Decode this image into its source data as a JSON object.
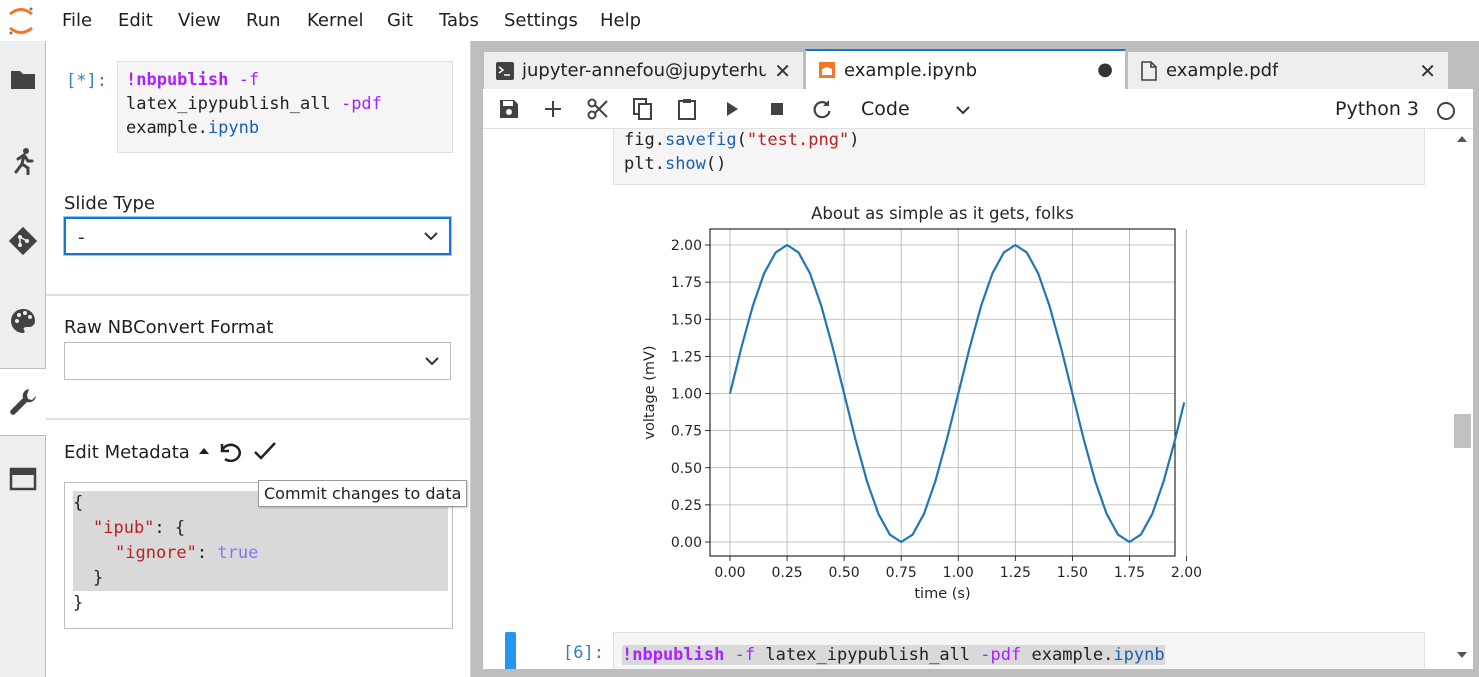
{
  "menubar": {
    "items": [
      "File",
      "Edit",
      "View",
      "Run",
      "Kernel",
      "Git",
      "Tabs",
      "Settings",
      "Help"
    ]
  },
  "leftbar": {
    "icons": [
      "folder-icon",
      "running-icon",
      "git-icon",
      "palette-icon",
      "wrench-icon",
      "tabs-icon"
    ]
  },
  "sidepanel": {
    "prompt": "[*]:",
    "code_cmd": "!nbpublish",
    "code_flag1": "-f",
    "code_line2a": "latex_ipypublish_all",
    "code_flag2": "-pdf",
    "code_line3a": "example.",
    "code_line3b": "ipynb",
    "slide_type_label": "Slide Type",
    "slide_type_value": "-",
    "raw_format_label": "Raw NBConvert Format",
    "raw_format_value": "",
    "edit_metadata_label": "Edit Metadata",
    "metadata_json": {
      "open": "{",
      "key1": "\"ipub\"",
      "colon1": ": {",
      "key2": "\"ignore\"",
      "colon2": ": ",
      "val2": "true",
      "close1": "}",
      "close2": "}"
    },
    "tooltip": "Commit changes to data"
  },
  "tabs": [
    {
      "label": "jupyter-annefou@jupyterhu",
      "icon": "terminal-icon",
      "close": "✕"
    },
    {
      "label": "example.ipynb",
      "icon": "notebook-icon",
      "close": "●"
    },
    {
      "label": "example.pdf",
      "icon": "file-icon",
      "close": "✕"
    }
  ],
  "toolbar": {
    "cell_type": "Code",
    "kernel": "Python 3"
  },
  "notebook": {
    "code_top": {
      "l1a": "fig.",
      "l1b": "savefig",
      "l1c": "(",
      "l1d": "\"test.png\"",
      "l1e": ")",
      "l2a": "plt.",
      "l2b": "show",
      "l2c": "()"
    },
    "cell6": {
      "prompt": "[6]:",
      "cmd": "!nbpublish",
      "flag1": "-f",
      "arg": "latex_ipypublish_all",
      "flag2": "-pdf",
      "file_a": "example.",
      "file_b": "ipynb"
    }
  },
  "chart_data": {
    "type": "line",
    "title": "About as simple as it gets, folks",
    "xlabel": "time (s)",
    "ylabel": "voltage (mV)",
    "xlim": [
      0,
      2
    ],
    "ylim": [
      0,
      2
    ],
    "xticks": [
      "0.00",
      "0.25",
      "0.50",
      "0.75",
      "1.00",
      "1.25",
      "1.50",
      "1.75",
      "2.00"
    ],
    "yticks": [
      "0.00",
      "0.25",
      "0.50",
      "0.75",
      "1.00",
      "1.25",
      "1.50",
      "1.75",
      "2.00"
    ],
    "grid": true,
    "line_color": "#1f77b4",
    "series": [
      {
        "x": [
          0.0,
          0.05,
          0.1,
          0.15,
          0.2,
          0.25,
          0.3,
          0.35,
          0.4,
          0.45,
          0.5,
          0.55,
          0.6,
          0.65,
          0.7,
          0.75,
          0.8,
          0.85,
          0.9,
          0.95,
          1.0,
          1.05,
          1.1,
          1.15,
          1.2,
          1.25,
          1.3,
          1.35,
          1.4,
          1.45,
          1.5,
          1.55,
          1.6,
          1.65,
          1.7,
          1.75,
          1.8,
          1.85,
          1.9,
          1.95,
          1.99
        ],
        "y": [
          1.0,
          1.31,
          1.59,
          1.81,
          1.95,
          2.0,
          1.95,
          1.81,
          1.59,
          1.31,
          1.0,
          0.69,
          0.41,
          0.19,
          0.05,
          0.0,
          0.05,
          0.19,
          0.41,
          0.69,
          1.0,
          1.31,
          1.59,
          1.81,
          1.95,
          2.0,
          1.95,
          1.81,
          1.59,
          1.31,
          1.0,
          0.69,
          0.41,
          0.19,
          0.05,
          0.0,
          0.05,
          0.19,
          0.41,
          0.69,
          0.94
        ]
      }
    ]
  }
}
